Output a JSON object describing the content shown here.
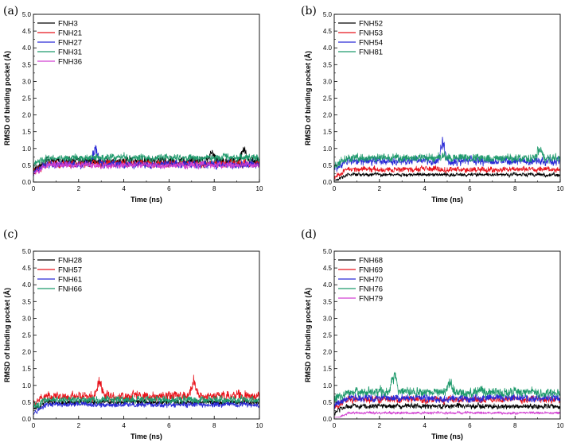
{
  "chart_data": [
    {
      "type": "line",
      "panel_label": "(a)",
      "xlabel": "Time (ns)",
      "ylabel": "RMSD of binding pocket (Å)",
      "xlim": [
        0,
        10
      ],
      "ylim": [
        0,
        5
      ],
      "xticks": [
        "0",
        "2",
        "4",
        "6",
        "8",
        "10"
      ],
      "yticks": [
        "0.0",
        "0.5",
        "1.0",
        "1.5",
        "2.0",
        "2.5",
        "3.0",
        "3.5",
        "4.0",
        "4.5",
        "5.0"
      ],
      "legend_position": "top-left",
      "series": [
        {
          "name": "FNH3",
          "color": "#000000",
          "mean": 0.62,
          "noise": 0.16,
          "seed": 11,
          "peaks": [
            [
              9.3,
              0.45
            ],
            [
              7.9,
              0.3
            ]
          ]
        },
        {
          "name": "FNH21",
          "color": "#e8141c",
          "mean": 0.55,
          "noise": 0.14,
          "seed": 23,
          "peaks": []
        },
        {
          "name": "FNH27",
          "color": "#2a2ad6",
          "mean": 0.52,
          "noise": 0.15,
          "seed": 37,
          "peaks": [
            [
              2.75,
              0.65
            ]
          ]
        },
        {
          "name": "FNH31",
          "color": "#1f9a6c",
          "mean": 0.72,
          "noise": 0.14,
          "seed": 41,
          "peaks": []
        },
        {
          "name": "FNH36",
          "color": "#d242d2",
          "mean": 0.5,
          "noise": 0.12,
          "seed": 53,
          "peaks": []
        }
      ]
    },
    {
      "type": "line",
      "panel_label": "(b)",
      "xlabel": "Time (ns)",
      "ylabel": "RMSD of binding pocket (Å)",
      "xlim": [
        0,
        10
      ],
      "ylim": [
        0,
        5
      ],
      "xticks": [
        "0",
        "2",
        "4",
        "6",
        "8",
        "10"
      ],
      "yticks": [
        "0.0",
        "0.5",
        "1.0",
        "1.5",
        "2.0",
        "2.5",
        "3.0",
        "3.5",
        "4.0",
        "4.5",
        "5.0"
      ],
      "legend_position": "top-left",
      "series": [
        {
          "name": "FNH52",
          "color": "#000000",
          "mean": 0.22,
          "noise": 0.07,
          "seed": 61,
          "peaks": []
        },
        {
          "name": "FNH53",
          "color": "#e8141c",
          "mean": 0.38,
          "noise": 0.1,
          "seed": 67,
          "peaks": []
        },
        {
          "name": "FNH54",
          "color": "#2a2ad6",
          "mean": 0.62,
          "noise": 0.15,
          "seed": 71,
          "peaks": [
            [
              4.8,
              0.75
            ]
          ]
        },
        {
          "name": "FNH81",
          "color": "#1f9a6c",
          "mean": 0.72,
          "noise": 0.16,
          "seed": 79,
          "peaks": [
            [
              9.1,
              0.35
            ]
          ]
        }
      ]
    },
    {
      "type": "line",
      "panel_label": "(c)",
      "xlabel": "Time (ns)",
      "ylabel": "RMSD of binding pocket (Å)",
      "xlim": [
        0,
        10
      ],
      "ylim": [
        0,
        5
      ],
      "xticks": [
        "0",
        "2",
        "4",
        "6",
        "8",
        "10"
      ],
      "yticks": [
        "0.0",
        "0.5",
        "1.0",
        "1.5",
        "2.0",
        "2.5",
        "3.0",
        "3.5",
        "4.0",
        "4.5",
        "5.0"
      ],
      "legend_position": "top-left",
      "series": [
        {
          "name": "FNH28",
          "color": "#000000",
          "mean": 0.5,
          "noise": 0.1,
          "seed": 83,
          "peaks": []
        },
        {
          "name": "FNH57",
          "color": "#e8141c",
          "mean": 0.68,
          "noise": 0.18,
          "seed": 89,
          "peaks": [
            [
              2.9,
              0.55
            ],
            [
              7.1,
              0.55
            ]
          ]
        },
        {
          "name": "FNH61",
          "color": "#2a2ad6",
          "mean": 0.42,
          "noise": 0.1,
          "seed": 97,
          "peaks": []
        },
        {
          "name": "FNH66",
          "color": "#1f9a6c",
          "mean": 0.58,
          "noise": 0.14,
          "seed": 101,
          "peaks": []
        }
      ]
    },
    {
      "type": "line",
      "panel_label": "(d)",
      "xlabel": "Time (ns)",
      "ylabel": "RMSD of binding pocket (Å)",
      "xlim": [
        0,
        10
      ],
      "ylim": [
        0,
        5
      ],
      "xticks": [
        "0",
        "2",
        "4",
        "6",
        "8",
        "10"
      ],
      "yticks": [
        "0.0",
        "0.5",
        "1.0",
        "1.5",
        "2.0",
        "2.5",
        "3.0",
        "3.5",
        "4.0",
        "4.5",
        "5.0"
      ],
      "legend_position": "top-left",
      "series": [
        {
          "name": "FNH68",
          "color": "#000000",
          "mean": 0.38,
          "noise": 0.1,
          "seed": 103,
          "peaks": []
        },
        {
          "name": "FNH69",
          "color": "#e8141c",
          "mean": 0.58,
          "noise": 0.13,
          "seed": 107,
          "peaks": []
        },
        {
          "name": "FNH70",
          "color": "#2a2ad6",
          "mean": 0.62,
          "noise": 0.14,
          "seed": 109,
          "peaks": []
        },
        {
          "name": "FNH76",
          "color": "#1f9a6c",
          "mean": 0.8,
          "noise": 0.18,
          "seed": 113,
          "peaks": [
            [
              2.65,
              0.7
            ],
            [
              5.1,
              0.35
            ]
          ]
        },
        {
          "name": "FNH79",
          "color": "#d242d2",
          "mean": 0.18,
          "noise": 0.05,
          "seed": 127,
          "peaks": []
        }
      ]
    }
  ]
}
